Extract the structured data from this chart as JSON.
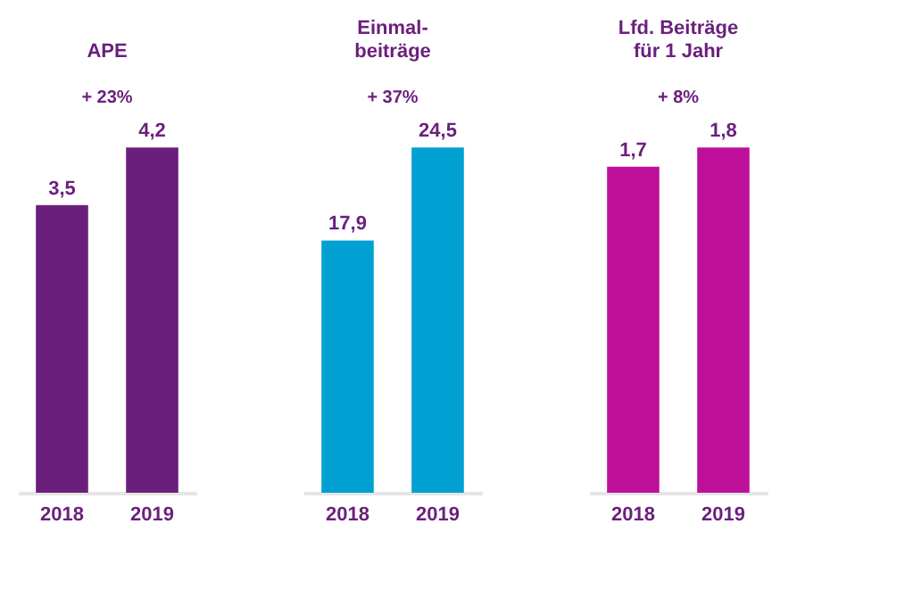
{
  "chart_data": [
    {
      "type": "bar",
      "title": "APE",
      "categories": [
        "2018",
        "2019"
      ],
      "values": [
        3.5,
        4.2
      ],
      "value_labels": [
        "3,5",
        "4,2"
      ],
      "colors": [
        "#6b1f7c",
        "#6b1f7c"
      ],
      "annotations": [
        "+ 23%"
      ]
    },
    {
      "type": "bar",
      "title": [
        "Einmal-",
        "beiträge"
      ],
      "categories": [
        "2018",
        "2019"
      ],
      "values": [
        17.9,
        24.5
      ],
      "value_labels": [
        "17,9",
        "24,5"
      ],
      "colors": [
        "#00a0d2",
        "#00a0d2"
      ],
      "annotations": [
        "+ 37%"
      ]
    },
    {
      "type": "bar",
      "title": [
        "Lfd. Beiträge",
        "für 1 Jahr"
      ],
      "categories": [
        "2018",
        "2019"
      ],
      "values": [
        1.7,
        1.8
      ],
      "value_labels": [
        "1,7",
        "1,8"
      ],
      "colors": [
        "#be109a",
        "#be109a"
      ],
      "annotations": [
        "+ 8%"
      ]
    }
  ]
}
